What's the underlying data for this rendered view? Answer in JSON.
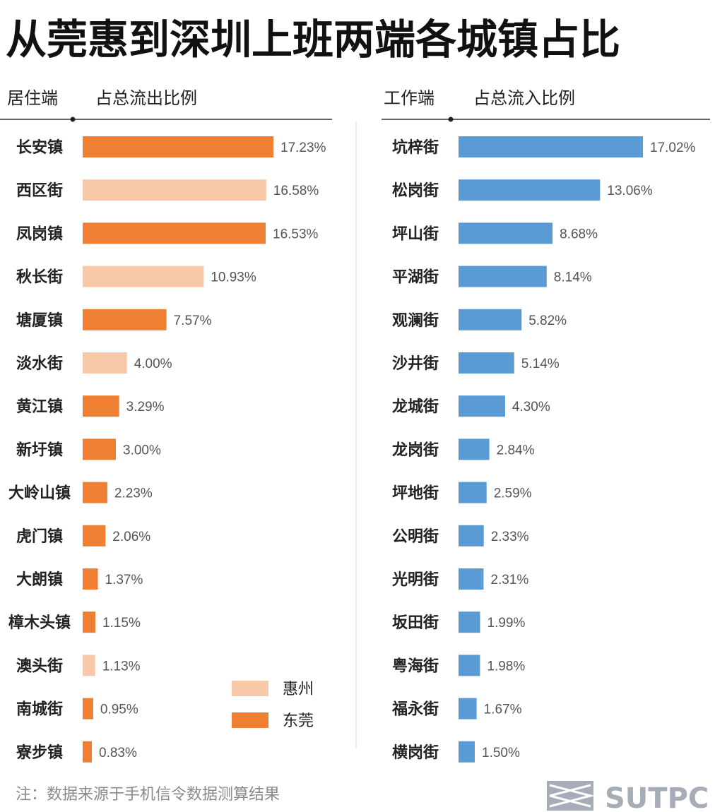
{
  "title": "从莞惠到深圳上班两端各城镇占比",
  "chart_data": [
    {
      "type": "bar",
      "orientation": "horizontal",
      "category_header": "居住端",
      "value_header": "占总流出比例",
      "categories": [
        "长安镇",
        "西区街",
        "凤岗镇",
        "秋长街",
        "塘厦镇",
        "淡水街",
        "黄江镇",
        "新圩镇",
        "大岭山镇",
        "虎门镇",
        "大朗镇",
        "樟木头镇",
        "澳头街",
        "南城街",
        "寮步镇"
      ],
      "values": [
        17.23,
        16.58,
        16.53,
        10.93,
        7.57,
        4.0,
        3.29,
        3.0,
        2.23,
        2.06,
        1.37,
        1.15,
        1.13,
        0.95,
        0.83
      ],
      "value_labels": [
        "17.23%",
        "16.58%",
        "16.53%",
        "10.93%",
        "7.57%",
        "4.00%",
        "3.29%",
        "3.00%",
        "2.23%",
        "2.06%",
        "1.37%",
        "1.15%",
        "1.13%",
        "0.95%",
        "0.83%"
      ],
      "groups": [
        "东莞",
        "惠州",
        "东莞",
        "惠州",
        "东莞",
        "惠州",
        "东莞",
        "东莞",
        "东莞",
        "东莞",
        "东莞",
        "东莞",
        "惠州",
        "东莞",
        "东莞"
      ],
      "legend": [
        {
          "name": "惠州",
          "color": "#f8c9a9"
        },
        {
          "name": "东莞",
          "color": "#ee7f33"
        }
      ],
      "legend_position": "bottom-right",
      "xlim": [
        0,
        17.23
      ],
      "grid": false
    },
    {
      "type": "bar",
      "orientation": "horizontal",
      "category_header": "工作端",
      "value_header": "占总流入比例",
      "categories": [
        "坑梓街",
        "松岗街",
        "坪山街",
        "平湖街",
        "观澜街",
        "沙井街",
        "龙城街",
        "龙岗街",
        "坪地街",
        "公明街",
        "光明街",
        "坂田街",
        "粤海街",
        "福永街",
        "横岗街"
      ],
      "values": [
        17.02,
        13.06,
        8.68,
        8.14,
        5.82,
        5.14,
        4.3,
        2.84,
        2.59,
        2.33,
        2.31,
        1.99,
        1.98,
        1.67,
        1.5
      ],
      "value_labels": [
        "17.02%",
        "13.06%",
        "8.68%",
        "8.14%",
        "5.82%",
        "5.14%",
        "4.30%",
        "2.84%",
        "2.59%",
        "2.33%",
        "2.31%",
        "1.99%",
        "1.98%",
        "1.67%",
        "1.50%"
      ],
      "color": "#5b9bd5",
      "xlim": [
        0,
        17.02
      ],
      "grid": false
    }
  ],
  "footnote": "注：数据来源于手机信令数据测算结果",
  "brand": "SUTPC",
  "colors": {
    "dongguan": "#ee7f33",
    "huizhou": "#f8c9a9",
    "shenzhen": "#5b9bd5",
    "brand": "#a7adb8"
  }
}
